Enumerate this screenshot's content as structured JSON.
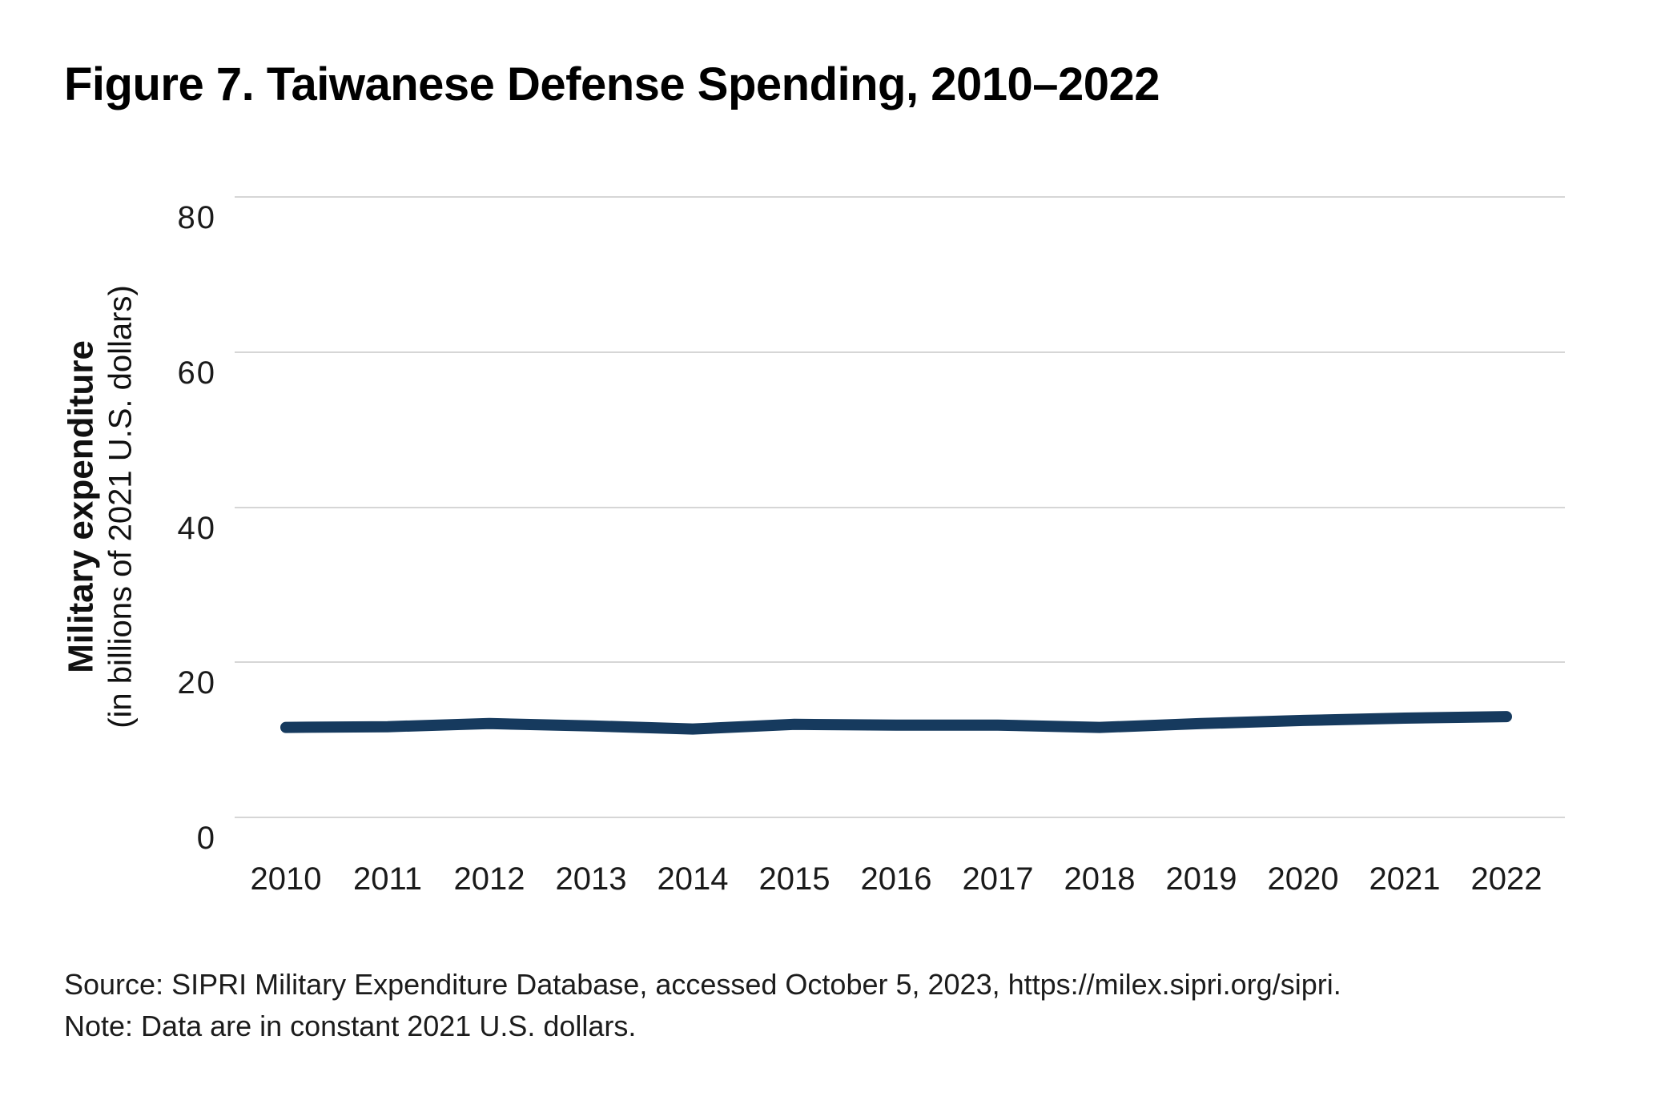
{
  "title": "Figure 7. Taiwanese Defense Spending, 2010–2022",
  "y_axis": {
    "label_main": "Military expenditure",
    "label_sub": "(in billions of 2021 U.S. dollars)"
  },
  "footer": {
    "source": "Source: SIPRI Military Expenditure Database, accessed October 5, 2023, https://milex.sipri.org/sipri.",
    "note": "Note: Data are in constant 2021 U.S. dollars."
  },
  "colors": {
    "line": "#163a5e",
    "grid": "#d6d6d6",
    "text": "#1a1a1a"
  },
  "chart_data": {
    "type": "line",
    "title": "Figure 7. Taiwanese Defense Spending, 2010–2022",
    "series_name": "Taiwanese military expenditure",
    "categories": [
      2010,
      2011,
      2012,
      2013,
      2014,
      2015,
      2016,
      2017,
      2018,
      2019,
      2020,
      2021,
      2022
    ],
    "values": [
      11.6,
      11.7,
      12.1,
      11.8,
      11.4,
      12.0,
      11.9,
      11.9,
      11.6,
      12.1,
      12.5,
      12.8,
      13.0
    ],
    "xlabel": "",
    "ylabel": "Military expenditure (in billions of 2021 U.S. dollars)",
    "ylim": [
      0,
      80
    ],
    "yticks": [
      80,
      60,
      40,
      20,
      0
    ],
    "grid": "horizontal-only",
    "legend": "none"
  }
}
